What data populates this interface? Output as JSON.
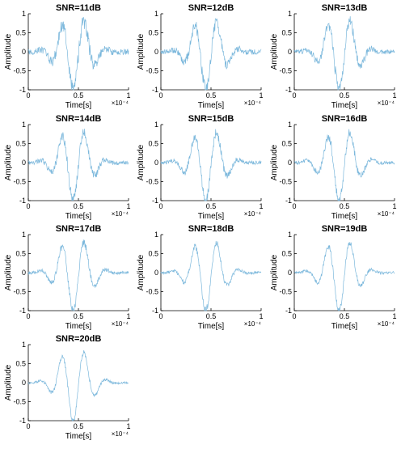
{
  "signal_color": "#7cb8dc",
  "chart_data": [
    {
      "type": "line",
      "title": "SNR=11dB",
      "snr_db": 11,
      "xlabel": "Time[s]",
      "ylabel": "Amplitude",
      "x_multiplier": "×10⁻⁴",
      "xlim": [
        0,
        1
      ],
      "ylim": [
        -1,
        1
      ],
      "xticks": [
        "0",
        "0.5",
        "1"
      ],
      "yticks": [
        "1",
        "0.5",
        "0",
        "-0.5",
        "-1"
      ],
      "grid": false,
      "series_description": "noisy modulated pulse"
    },
    {
      "type": "line",
      "title": "SNR=12dB",
      "snr_db": 12,
      "xlabel": "Time[s]",
      "ylabel": "Amplitude",
      "x_multiplier": "×10⁻⁴",
      "xlim": [
        0,
        1
      ],
      "ylim": [
        -1,
        1
      ],
      "xticks": [
        "0",
        "0.5",
        "1"
      ],
      "yticks": [
        "1",
        "0.5",
        "0",
        "-0.5",
        "-1"
      ],
      "grid": false
    },
    {
      "type": "line",
      "title": "SNR=13dB",
      "snr_db": 13,
      "xlabel": "Time[s]",
      "ylabel": "Amplitude",
      "x_multiplier": "×10⁻⁴",
      "xlim": [
        0,
        1
      ],
      "ylim": [
        -1,
        1
      ],
      "xticks": [
        "0",
        "0.5",
        "1"
      ],
      "yticks": [
        "1",
        "0.5",
        "0",
        "-0.5",
        "-1"
      ],
      "grid": false
    },
    {
      "type": "line",
      "title": "SNR=14dB",
      "snr_db": 14,
      "xlabel": "Time[s]",
      "ylabel": "Amplitude",
      "x_multiplier": "×10⁻⁴",
      "xlim": [
        0,
        1
      ],
      "ylim": [
        -1,
        1
      ],
      "xticks": [
        "0",
        "0.5",
        "1"
      ],
      "yticks": [
        "1",
        "0.5",
        "0",
        "-0.5",
        "-1"
      ],
      "grid": false
    },
    {
      "type": "line",
      "title": "SNR=15dB",
      "snr_db": 15,
      "xlabel": "Time[s]",
      "ylabel": "Amplitude",
      "x_multiplier": "×10⁻⁴",
      "xlim": [
        0,
        1
      ],
      "ylim": [
        -1,
        1
      ],
      "xticks": [
        "0",
        "0.5",
        "1"
      ],
      "yticks": [
        "1",
        "0.5",
        "0",
        "-0.5",
        "-1"
      ],
      "grid": false
    },
    {
      "type": "line",
      "title": "SNR=16dB",
      "snr_db": 16,
      "xlabel": "Time[s]",
      "ylabel": "Amplitude",
      "x_multiplier": "×10⁻⁴",
      "xlim": [
        0,
        1
      ],
      "ylim": [
        -1,
        1
      ],
      "xticks": [
        "0",
        "0.5",
        "1"
      ],
      "yticks": [
        "1",
        "0.5",
        "0",
        "-0.5",
        "-1"
      ],
      "grid": false
    },
    {
      "type": "line",
      "title": "SNR=17dB",
      "snr_db": 17,
      "xlabel": "Time[s]",
      "ylabel": "Amplitude",
      "x_multiplier": "×10⁻⁴",
      "xlim": [
        0,
        1
      ],
      "ylim": [
        -1,
        1
      ],
      "xticks": [
        "0",
        "0.5",
        "1"
      ],
      "yticks": [
        "1",
        "0.5",
        "0",
        "-0.5",
        "-1"
      ],
      "grid": false
    },
    {
      "type": "line",
      "title": "SNR=18dB",
      "snr_db": 18,
      "xlabel": "Time[s]",
      "ylabel": "Amplitude",
      "x_multiplier": "×10⁻⁴",
      "xlim": [
        0,
        1
      ],
      "ylim": [
        -1,
        1
      ],
      "xticks": [
        "0",
        "0.5",
        "1"
      ],
      "yticks": [
        "1",
        "0.5",
        "0",
        "-0.5",
        "-1"
      ],
      "grid": false
    },
    {
      "type": "line",
      "title": "SNR=19dB",
      "snr_db": 19,
      "xlabel": "Time[s]",
      "ylabel": "Amplitude",
      "x_multiplier": "×10⁻⁴",
      "xlim": [
        0,
        1
      ],
      "ylim": [
        -1,
        1
      ],
      "xticks": [
        "0",
        "0.5",
        "1"
      ],
      "yticks": [
        "1",
        "0.5",
        "0",
        "-0.5",
        "-1"
      ],
      "grid": false
    },
    {
      "type": "line",
      "title": "SNR=20dB",
      "snr_db": 20,
      "xlabel": "Time[s]",
      "ylabel": "Amplitude",
      "x_multiplier": "×10⁻⁴",
      "xlim": [
        0,
        1
      ],
      "ylim": [
        -1,
        1
      ],
      "xticks": [
        "0",
        "0.5",
        "1"
      ],
      "yticks": [
        "1",
        "0.5",
        "0",
        "-0.5",
        "-1"
      ],
      "grid": false
    }
  ]
}
